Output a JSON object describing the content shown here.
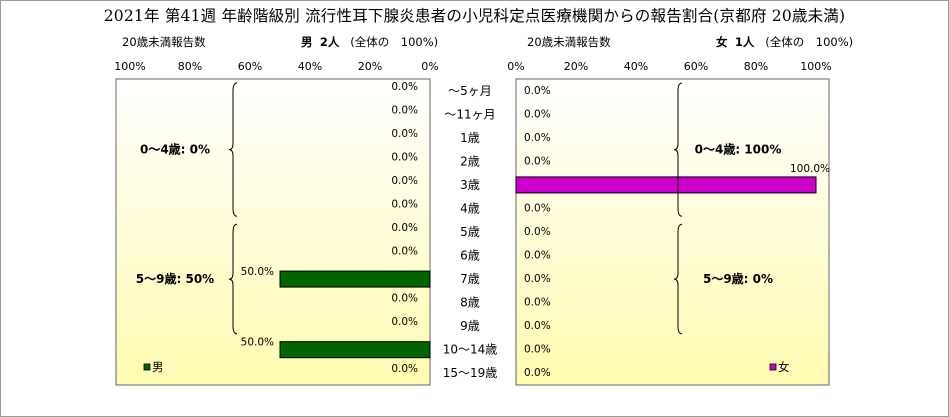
{
  "title": "2021年 第41週 年齢階級別 流行性耳下腺炎患者の小児科定点医療機関からの報告割合(京都府 20歳未満)",
  "left_header": {
    "label": "20歳未満報告数",
    "sex": "男",
    "count": "2人",
    "share": "(全体の　100%)"
  },
  "right_header": {
    "label": "20歳未満報告数",
    "sex": "女",
    "count": "1人",
    "share": "(全体の　100%)"
  },
  "colors": {
    "male": "#006400",
    "female": "#cc00cc",
    "panel_top": "#ffffff",
    "panel_bottom": "#fffbb0"
  },
  "chart_data": [
    {
      "type": "bar",
      "orientation": "horizontal",
      "side": "left",
      "series": [
        {
          "name": "男",
          "values": [
            0,
            0,
            0,
            0,
            0,
            0,
            0,
            0,
            50,
            0,
            0,
            50,
            0
          ]
        }
      ],
      "categories": [
        "～5ヶ月",
        "～11ヶ月",
        "1歳",
        "2歳",
        "3歳",
        "4歳",
        "5歳",
        "6歳",
        "7歳",
        "8歳",
        "9歳",
        "10～14歳",
        "15～19歳"
      ],
      "data_labels": [
        "0.0%",
        "0.0%",
        "0.0%",
        "0.0%",
        "0.0%",
        "0.0%",
        "0.0%",
        "0.0%",
        "50.0%",
        "0.0%",
        "0.0%",
        "50.0%",
        "0.0%"
      ],
      "xlim": [
        0,
        100
      ],
      "x_reversed": true,
      "ticks": [
        "100%",
        "80%",
        "60%",
        "40%",
        "20%",
        "0%"
      ],
      "group_labels": [
        "0～4歳: 0%",
        "5～9歳: 50%"
      ],
      "legend": "bottom-left"
    },
    {
      "type": "bar",
      "orientation": "horizontal",
      "side": "right",
      "series": [
        {
          "name": "女",
          "values": [
            0,
            0,
            0,
            0,
            100,
            0,
            0,
            0,
            0,
            0,
            0,
            0,
            0
          ]
        }
      ],
      "categories": [
        "～5ヶ月",
        "～11ヶ月",
        "1歳",
        "2歳",
        "3歳",
        "4歳",
        "5歳",
        "6歳",
        "7歳",
        "8歳",
        "9歳",
        "10～14歳",
        "15～19歳"
      ],
      "data_labels": [
        "0.0%",
        "0.0%",
        "0.0%",
        "0.0%",
        "100.0%",
        "0.0%",
        "0.0%",
        "0.0%",
        "0.0%",
        "0.0%",
        "0.0%",
        "0.0%",
        "0.0%"
      ],
      "xlim": [
        0,
        100
      ],
      "x_reversed": false,
      "ticks": [
        "0%",
        "20%",
        "40%",
        "60%",
        "80%",
        "100%"
      ],
      "group_labels": [
        "0～4歳: 100%",
        "5～9歳: 0%"
      ],
      "legend": "bottom-right"
    }
  ]
}
